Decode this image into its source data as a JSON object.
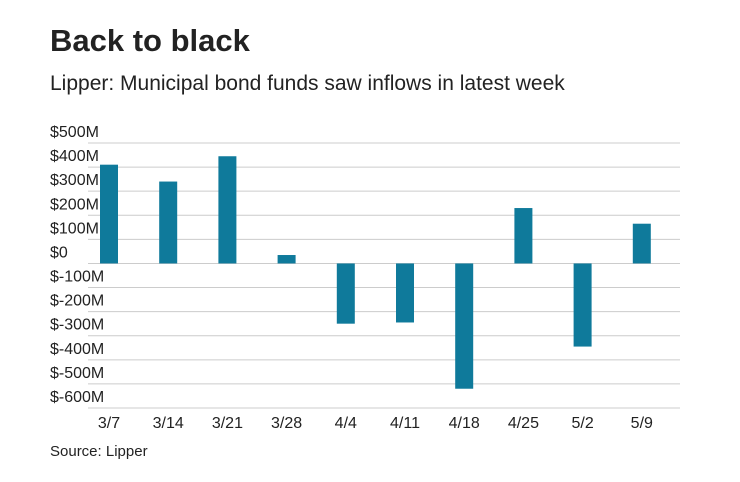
{
  "chart_data": {
    "type": "bar",
    "title": "Back to black",
    "subtitle": "Lipper: Municipal bond funds saw inflows in latest week",
    "source": "Source: Lipper",
    "categories": [
      "3/7",
      "3/14",
      "3/21",
      "3/28",
      "4/4",
      "4/11",
      "4/18",
      "4/25",
      "5/2",
      "5/9"
    ],
    "values": [
      410,
      340,
      445,
      35,
      -250,
      -245,
      -520,
      230,
      -345,
      165
    ],
    "color": "#0f7a9b",
    "ylim": [
      -600,
      500
    ],
    "yticks": [
      {
        "value": 500,
        "label": "$500M"
      },
      {
        "value": 400,
        "label": "$400M"
      },
      {
        "value": 300,
        "label": "$300M"
      },
      {
        "value": 200,
        "label": "$200M"
      },
      {
        "value": 100,
        "label": "$100M"
      },
      {
        "value": 0,
        "label": "$0"
      },
      {
        "value": -100,
        "label": "$-100M"
      },
      {
        "value": -200,
        "label": "$-200M"
      },
      {
        "value": -300,
        "label": "$-300M"
      },
      {
        "value": -400,
        "label": "$-400M"
      },
      {
        "value": -500,
        "label": "$-500M"
      },
      {
        "value": -600,
        "label": "$-600M"
      }
    ],
    "grid": true
  }
}
